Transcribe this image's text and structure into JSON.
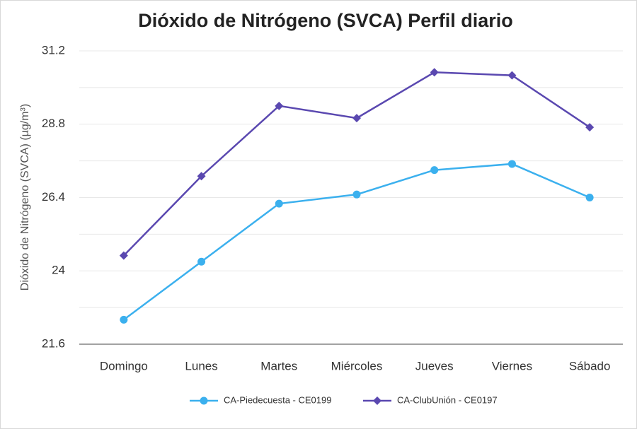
{
  "chart_data": {
    "type": "line",
    "title": "Dióxido de Nitrógeno (SVCA) Perfil diario",
    "y_label": "Dióxido de Nitrógeno (SVCA) (µg/m³)",
    "categories": [
      "Domingo",
      "Lunes",
      "Martes",
      "Miércoles",
      "Jueves",
      "Viernes",
      "Sábado"
    ],
    "series": [
      {
        "name": "CA-Piedecuesta - CE0199",
        "color": "#3bb0ee",
        "marker": "circle",
        "values": [
          22.4,
          24.3,
          26.2,
          26.5,
          27.3,
          27.5,
          26.4
        ]
      },
      {
        "name": "CA-ClubUnión - CE0197",
        "color": "#5a48b0",
        "marker": "diamond",
        "values": [
          24.5,
          27.1,
          29.4,
          29.0,
          30.5,
          30.4,
          28.7
        ]
      }
    ],
    "ylim": [
      21.6,
      31.2
    ],
    "yticks": [
      21.6,
      24,
      26.4,
      28.8,
      31.2
    ],
    "minor_yticks": [
      22.8,
      25.2,
      27.6,
      30
    ],
    "grid": true,
    "legend": "bottom"
  }
}
